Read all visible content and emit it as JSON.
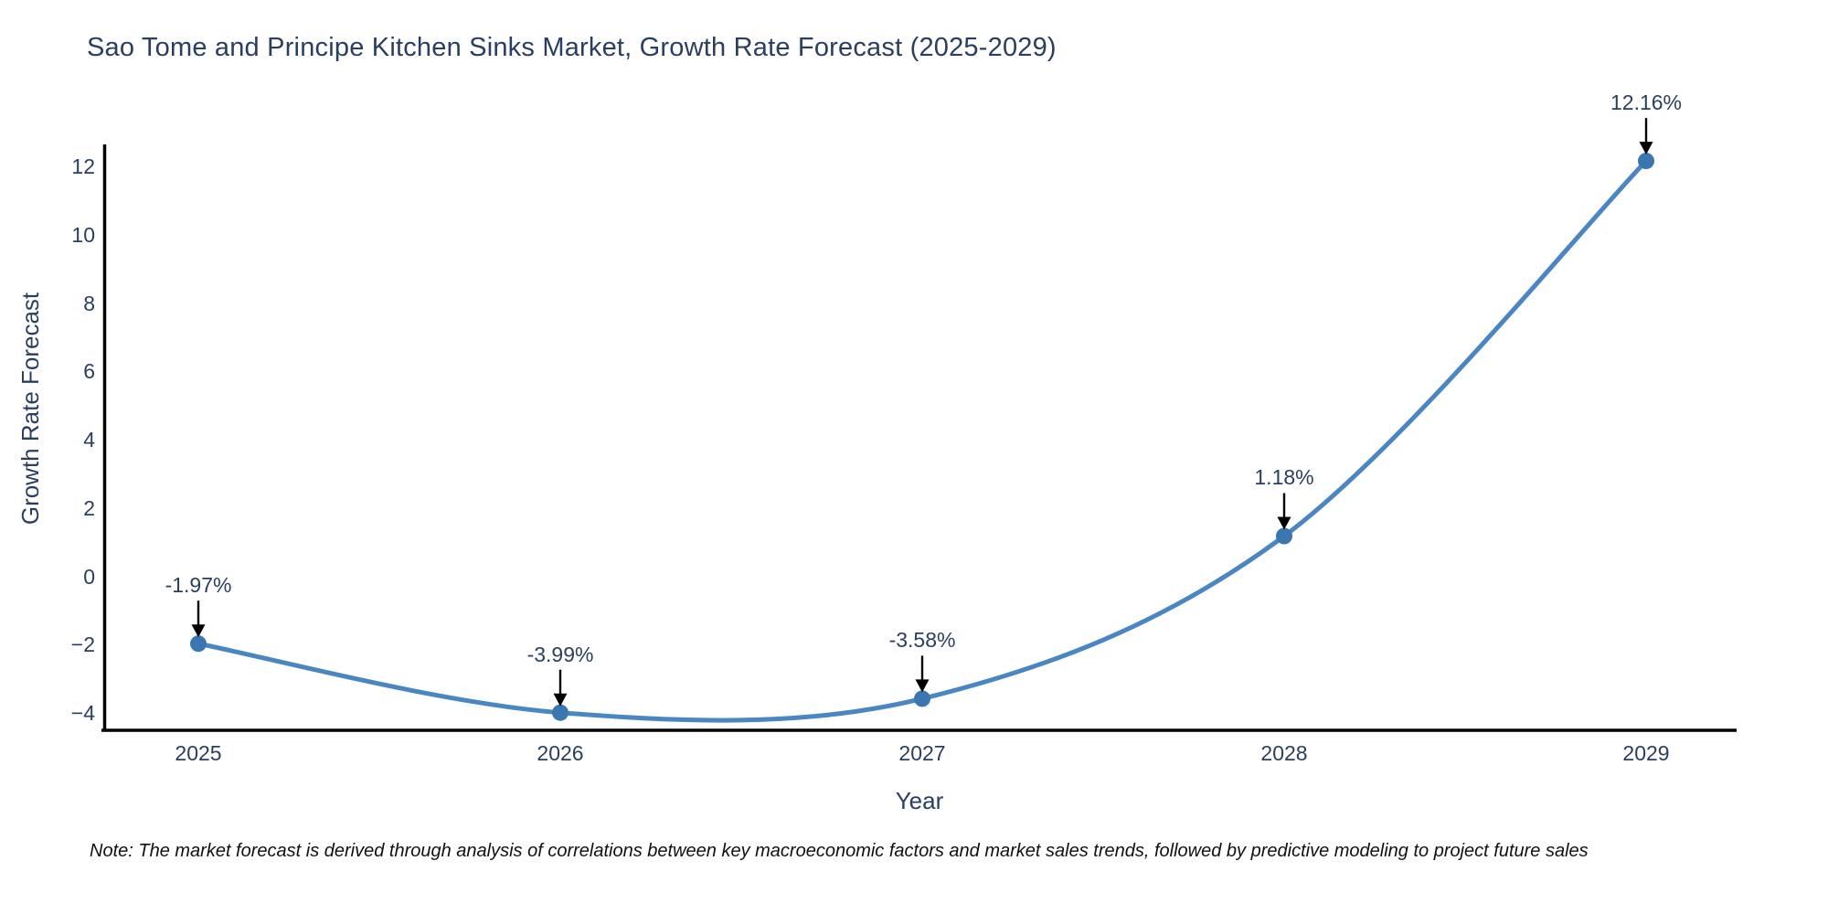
{
  "chart_data": {
    "type": "line",
    "line_shape": "spline",
    "title": "Sao Tome and Principe Kitchen Sinks Market, Growth Rate Forecast (2025-2029)",
    "xlabel": "Year",
    "ylabel": "Growth Rate Forecast",
    "categories": [
      "2025",
      "2026",
      "2027",
      "2028",
      "2029"
    ],
    "values": [
      -1.97,
      -3.99,
      -3.58,
      1.18,
      12.16
    ],
    "point_labels": [
      "-1.97%",
      "-3.99%",
      "-3.58%",
      "1.18%",
      "12.16%"
    ],
    "yticks": [
      {
        "value": 12,
        "label": "12"
      },
      {
        "value": 10,
        "label": "10"
      },
      {
        "value": 8,
        "label": "8"
      },
      {
        "value": 6,
        "label": "6"
      },
      {
        "value": 4,
        "label": "4"
      },
      {
        "value": 2,
        "label": "2"
      },
      {
        "value": 0,
        "label": "0"
      },
      {
        "value": -2,
        "label": "−2"
      },
      {
        "value": -4,
        "label": "−4"
      }
    ],
    "ylim": [
      -4.6,
      12.8
    ],
    "grid": false,
    "legend": "none",
    "note": "Note: The market forecast is derived through analysis of correlations between key macroeconomic factors and market sales trends, followed by predictive modeling to project future sales",
    "colors": {
      "line": "#4a86c2",
      "marker": "#3a76b0",
      "title_text": "#2a3f5f",
      "tick_text": "#2a3f5f",
      "annotation_text": "#2a3f5f",
      "annotation_arrow": "#000000",
      "axis_line": "#000000",
      "note_text": "#111111",
      "background": "#ffffff"
    }
  }
}
